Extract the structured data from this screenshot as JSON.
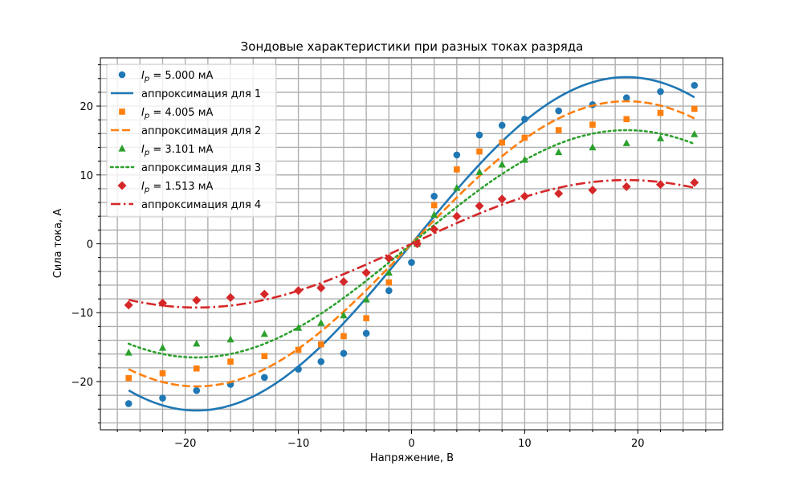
{
  "chart_data": {
    "type": "scatter",
    "title": "Зондовые характеристики при разных токах разряда",
    "xlabel": "Напряжение, В",
    "ylabel": "Сила тока, А",
    "xlim": [
      -27.5,
      27.5
    ],
    "ylim": [
      -27,
      27
    ],
    "xticks": [
      -20,
      -10,
      0,
      10,
      20
    ],
    "yticks": [
      -20,
      -10,
      0,
      10,
      20
    ],
    "grid": true,
    "minor_grid": true,
    "legend_position": "upper-left",
    "legend": [
      {
        "kind": "scatter",
        "prefix": "I",
        "sub": "p",
        "suffix": " = 5.000 мА",
        "color": "#1f77b4",
        "marker": "circle"
      },
      {
        "kind": "line",
        "label": "аппроксимация для 1",
        "color": "#1f77b4",
        "style": "solid"
      },
      {
        "kind": "scatter",
        "prefix": "I",
        "sub": "p",
        "suffix": " = 4.005 мА",
        "color": "#ff7f0e",
        "marker": "square"
      },
      {
        "kind": "line",
        "label": "аппроксимация для 2",
        "color": "#ff7f0e",
        "style": "dashed"
      },
      {
        "kind": "scatter",
        "prefix": "I",
        "sub": "p",
        "suffix": " = 3.101 мА",
        "color": "#2ca02c",
        "marker": "triangle"
      },
      {
        "kind": "line",
        "label": "аппроксимация для 3",
        "color": "#2ca02c",
        "style": "dotted"
      },
      {
        "kind": "scatter",
        "prefix": "I",
        "sub": "p",
        "suffix": " = 1.513 мА",
        "color": "#d62728",
        "marker": "diamond"
      },
      {
        "kind": "line",
        "label": "аппроксимация для 4",
        "color": "#d62728",
        "style": "dashdot"
      }
    ],
    "series": [
      {
        "color": "#1f77b4",
        "marker": "circle",
        "points": [
          [
            -25,
            -23.2
          ],
          [
            -22,
            -22.4
          ],
          [
            -19,
            -21.3
          ],
          [
            -16,
            -20.4
          ],
          [
            -13,
            -19.4
          ],
          [
            -10,
            -18.2
          ],
          [
            -8,
            -17.1
          ],
          [
            -6,
            -15.9
          ],
          [
            -4,
            -13.0
          ],
          [
            -2,
            -6.8
          ],
          [
            0,
            -2.7
          ],
          [
            0.5,
            0.0
          ],
          [
            2,
            6.9
          ],
          [
            4,
            12.9
          ],
          [
            6,
            15.8
          ],
          [
            8,
            17.2
          ],
          [
            10,
            18.1
          ],
          [
            13,
            19.3
          ],
          [
            16,
            20.2
          ],
          [
            19,
            21.2
          ],
          [
            22,
            22.1
          ],
          [
            25,
            23.0
          ]
        ],
        "fit": {
          "a": 24.2,
          "b": 0.0827
        }
      },
      {
        "color": "#ff7f0e",
        "marker": "square",
        "points": [
          [
            -25,
            -19.5
          ],
          [
            -22,
            -18.8
          ],
          [
            -19,
            -18.1
          ],
          [
            -16,
            -17.1
          ],
          [
            -13,
            -16.3
          ],
          [
            -10,
            -15.4
          ],
          [
            -8,
            -14.6
          ],
          [
            -6,
            -13.4
          ],
          [
            -4,
            -10.8
          ],
          [
            -2,
            -5.6
          ],
          [
            0.5,
            0.0
          ],
          [
            2,
            5.6
          ],
          [
            4,
            10.8
          ],
          [
            6,
            13.4
          ],
          [
            8,
            14.7
          ],
          [
            10,
            15.4
          ],
          [
            13,
            16.5
          ],
          [
            16,
            17.3
          ],
          [
            19,
            18.1
          ],
          [
            22,
            19.0
          ],
          [
            25,
            19.6
          ]
        ],
        "fit": {
          "a": 20.7,
          "b": 0.0827
        }
      },
      {
        "color": "#2ca02c",
        "marker": "triangle",
        "points": [
          [
            -25,
            -15.8
          ],
          [
            -22,
            -15.1
          ],
          [
            -19,
            -14.5
          ],
          [
            -16,
            -13.9
          ],
          [
            -13,
            -13.1
          ],
          [
            -10,
            -12.2
          ],
          [
            -8,
            -11.5
          ],
          [
            -6,
            -10.4
          ],
          [
            -4,
            -8.1
          ],
          [
            -2,
            -4.2
          ],
          [
            0.5,
            0.0
          ],
          [
            2,
            4.2
          ],
          [
            4,
            8.1
          ],
          [
            6,
            10.4
          ],
          [
            8,
            11.5
          ],
          [
            10,
            12.2
          ],
          [
            13,
            13.3
          ],
          [
            16,
            14.0
          ],
          [
            19,
            14.6
          ],
          [
            22,
            15.3
          ],
          [
            25,
            15.9
          ]
        ],
        "fit": {
          "a": 16.5,
          "b": 0.0827
        }
      },
      {
        "color": "#d62728",
        "marker": "diamond",
        "points": [
          [
            -25,
            -8.9
          ],
          [
            -22,
            -8.6
          ],
          [
            -19,
            -8.2
          ],
          [
            -16,
            -7.8
          ],
          [
            -13,
            -7.3
          ],
          [
            -10,
            -6.8
          ],
          [
            -8,
            -6.4
          ],
          [
            -6,
            -5.5
          ],
          [
            -4,
            -4.2
          ],
          [
            -2,
            -2.1
          ],
          [
            0.5,
            0.0
          ],
          [
            2,
            2.1
          ],
          [
            4,
            4.0
          ],
          [
            6,
            5.5
          ],
          [
            8,
            6.5
          ],
          [
            10,
            6.9
          ],
          [
            13,
            7.3
          ],
          [
            16,
            7.8
          ],
          [
            19,
            8.3
          ],
          [
            22,
            8.6
          ],
          [
            25,
            8.9
          ]
        ],
        "fit": {
          "a": 9.25,
          "b": 0.0827
        }
      }
    ]
  }
}
